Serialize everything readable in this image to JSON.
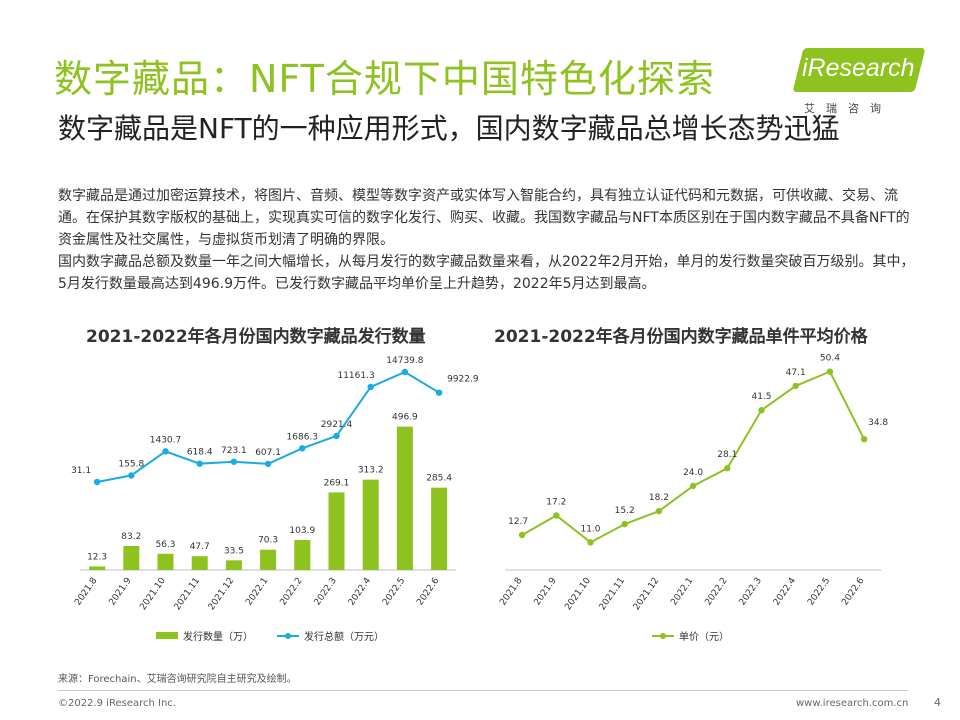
{
  "header": {
    "title": "数字藏品：NFT合规下中国特色化探索",
    "logo_text": "iResearch",
    "logo_sub": "艾瑞咨询",
    "subtitle": "数字藏品是NFT的一种应用形式，国内数字藏品总增长态势迅猛"
  },
  "body": {
    "para1": "数字藏品是通过加密运算技术，将图片、音频、模型等数字资产或实体写入智能合约，具有独立认证代码和元数据，可供收藏、交易、流通。在保护其数字版权的基础上，实现真实可信的数字化发行、购买、收藏。我国数字藏品与NFT本质区别在于国内数字藏品不具备NFT的资金属性及社交属性，与虚拟货币划清了明确的界限。",
    "para2": "国内数字藏品总额及数量一年之间大幅增长，从每月发行的数字藏品数量来看，从2022年2月开始，单月的发行数量突破百万级别。其中，5月发行数量最高达到496.9万件。已发行数字藏品平均单价呈上升趋势，2022年5月达到最高。"
  },
  "colors": {
    "green": "#8dc21f",
    "blue": "#1aabe3",
    "axis": "#bfbfbf"
  },
  "chart_data": [
    {
      "type": "bar",
      "title": "2021-2022年各月份国内数字藏品发行数量",
      "categories": [
        "2021.8",
        "2021.9",
        "2021.10",
        "2021.11",
        "2021.12",
        "2022.1",
        "2022.2",
        "2022.3",
        "2022.4",
        "2022.5",
        "2022.6"
      ],
      "series": [
        {
          "name": "发行数量（万）",
          "type": "bar",
          "values": [
            12.3,
            83.2,
            56.3,
            47.7,
            33.5,
            70.3,
            103.9,
            269.1,
            313.2,
            496.9,
            285.4
          ]
        },
        {
          "name": "发行总额（万元）",
          "type": "line",
          "values": [
            31.1,
            155.8,
            1430.7,
            618.4,
            723.1,
            607.1,
            1686.3,
            2921.4,
            11161.3,
            14739.8,
            9922.9
          ]
        }
      ],
      "bar_labels": [
        "12.3",
        "83.2",
        "56.3",
        "47.7",
        "33.5",
        "70.3",
        "103.9",
        "269.1",
        "313.2",
        "496.9",
        "285.4"
      ],
      "line_labels": [
        "31.1",
        "155.8",
        "1430.7",
        "618.4",
        "723.1",
        "607.1",
        "1686.3",
        "2921.4",
        "11161.3",
        "14739.8",
        "9922.9"
      ],
      "legend": [
        "发行数量（万）",
        "发行总额（万元）"
      ]
    },
    {
      "type": "line",
      "title": "2021-2022年各月份国内数字藏品单件平均价格",
      "categories": [
        "2021.8",
        "2021.9",
        "2021.10",
        "2021.11",
        "2021.12",
        "2022.1",
        "2022.2",
        "2022.3",
        "2022.4",
        "2022.5",
        "2022.6"
      ],
      "series": [
        {
          "name": "单价（元）",
          "values": [
            12.7,
            17.2,
            11.0,
            15.2,
            18.2,
            24.0,
            28.1,
            41.5,
            47.1,
            50.4,
            34.8
          ]
        }
      ],
      "labels": [
        "12.7",
        "17.2",
        "11.0",
        "15.2",
        "18.2",
        "24.0",
        "28.1",
        "41.5",
        "47.1",
        "50.4",
        "34.8"
      ],
      "legend": [
        "单价（元）"
      ]
    }
  ],
  "footer": {
    "source": "来源：Forechain、艾瑞咨询研究院自主研究及绘制。",
    "copyright": "©2022.9 iResearch Inc.",
    "website": "www.iresearch.com.cn",
    "page": "4"
  }
}
